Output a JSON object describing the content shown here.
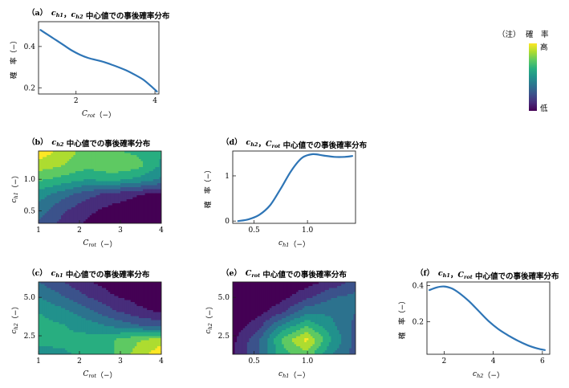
{
  "colorscale": [
    "#440154",
    "#472d7b",
    "#3b528b",
    "#2c728e",
    "#21918c",
    "#28ae80",
    "#5ec962",
    "#addc30",
    "#fde725"
  ],
  "line_color": "#2e75b6",
  "legend": {
    "note": "（注）",
    "prob_label": "確　率",
    "high": "高",
    "low": "低"
  },
  "chart_data": [
    {
      "id": "a",
      "type": "line",
      "title": "（a）　c_h1，c_h2 中心値での事後確率分布",
      "xlabel": "C_rot（−）",
      "ylabel": "確　率（−）",
      "xlim": [
        1.05,
        4.1
      ],
      "ylim": [
        0.17,
        0.52
      ],
      "xticks": [
        2,
        4
      ],
      "yticks": [
        0.2,
        0.4
      ],
      "x": [
        1.1,
        1.3,
        1.5,
        1.7,
        1.9,
        2.1,
        2.3,
        2.5,
        2.7,
        2.9,
        3.1,
        3.3,
        3.5,
        3.7,
        3.9,
        4.05
      ],
      "y": [
        0.48,
        0.455,
        0.43,
        0.405,
        0.38,
        0.36,
        0.345,
        0.335,
        0.325,
        0.312,
        0.298,
        0.282,
        0.262,
        0.24,
        0.208,
        0.182
      ]
    },
    {
      "id": "b",
      "type": "heatmap",
      "title": "（b）　c_h2 中心値での事後確率分布",
      "xlabel": "C_rot（−）",
      "ylabel": "c_h1（−）",
      "xlim": [
        1,
        4
      ],
      "ylim": [
        0.3,
        1.45
      ],
      "xticks": [
        1,
        2,
        3,
        4
      ],
      "yticks": [
        0.5,
        1.0
      ],
      "x": [
        1.0,
        1.6,
        2.2,
        2.8,
        3.4,
        4.0
      ],
      "y": [
        1.45,
        1.2,
        0.95,
        0.7,
        0.45,
        0.3
      ],
      "z": [
        [
          0.97,
          0.85,
          0.72,
          0.68,
          0.64,
          0.56
        ],
        [
          0.84,
          0.78,
          0.7,
          0.76,
          0.72,
          0.54
        ],
        [
          0.68,
          0.62,
          0.55,
          0.58,
          0.52,
          0.42
        ],
        [
          0.5,
          0.38,
          0.26,
          0.18,
          0.12,
          0.08
        ],
        [
          0.4,
          0.25,
          0.14,
          0.08,
          0.05,
          0.03
        ],
        [
          0.32,
          0.18,
          0.09,
          0.05,
          0.03,
          0.02
        ]
      ]
    },
    {
      "id": "c",
      "type": "heatmap",
      "title": "（c）　c_h1 中心値での事後確率分布",
      "xlabel": "C_rot（−）",
      "ylabel": "c_h2（−）",
      "xlim": [
        1,
        4
      ],
      "ylim": [
        1.3,
        6.0
      ],
      "xticks": [
        1,
        2,
        3,
        4
      ],
      "yticks": [
        2.5,
        5.0
      ],
      "x": [
        1.0,
        1.6,
        2.2,
        2.8,
        3.4,
        4.0
      ],
      "y": [
        6.0,
        5.0,
        4.0,
        3.0,
        2.0,
        1.3
      ],
      "z": [
        [
          0.34,
          0.22,
          0.12,
          0.06,
          0.04,
          0.03
        ],
        [
          0.44,
          0.34,
          0.22,
          0.12,
          0.07,
          0.05
        ],
        [
          0.55,
          0.47,
          0.36,
          0.24,
          0.14,
          0.09
        ],
        [
          0.6,
          0.56,
          0.5,
          0.42,
          0.34,
          0.28
        ],
        [
          0.58,
          0.58,
          0.6,
          0.66,
          0.76,
          0.84
        ],
        [
          0.52,
          0.54,
          0.58,
          0.66,
          0.82,
          0.97
        ]
      ]
    },
    {
      "id": "d",
      "type": "line",
      "title": "（d）　c_h2，C_rot 中心値での事後確率分布",
      "xlabel": "c_h1（−）",
      "ylabel": "確　率（−）",
      "xlim": [
        0.3,
        1.45
      ],
      "ylim": [
        -0.05,
        1.55
      ],
      "xticks": [
        0.5,
        1.0
      ],
      "yticks": [
        0,
        1
      ],
      "x": [
        0.35,
        0.45,
        0.55,
        0.65,
        0.75,
        0.85,
        0.95,
        1.05,
        1.15,
        1.25,
        1.35,
        1.42
      ],
      "y": [
        0.0,
        0.04,
        0.14,
        0.35,
        0.72,
        1.12,
        1.4,
        1.48,
        1.45,
        1.42,
        1.42,
        1.44
      ]
    },
    {
      "id": "e",
      "type": "heatmap",
      "title": "（e）　C_rot 中心値での事後確率分布",
      "xlabel": "c_h1（−）",
      "ylabel": "c_h2（−）",
      "xlim": [
        0.3,
        1.45
      ],
      "ylim": [
        1.3,
        6.0
      ],
      "xticks": [
        0.5,
        1.0
      ],
      "yticks": [
        2.5,
        5.0
      ],
      "x": [
        0.3,
        0.53,
        0.76,
        0.99,
        1.22,
        1.45
      ],
      "y": [
        6.0,
        5.0,
        4.0,
        3.0,
        2.0,
        1.3
      ],
      "z": [
        [
          0.02,
          0.02,
          0.03,
          0.06,
          0.14,
          0.26
        ],
        [
          0.02,
          0.03,
          0.07,
          0.18,
          0.32,
          0.36
        ],
        [
          0.03,
          0.06,
          0.18,
          0.4,
          0.42,
          0.34
        ],
        [
          0.05,
          0.16,
          0.46,
          0.64,
          0.48,
          0.3
        ],
        [
          0.08,
          0.3,
          0.68,
          0.92,
          0.56,
          0.3
        ],
        [
          0.1,
          0.32,
          0.62,
          0.74,
          0.46,
          0.28
        ]
      ]
    },
    {
      "id": "f",
      "type": "line",
      "title": "（f）　c_h1，C_rot 中心値での事後確率分布",
      "xlabel": "c_h2（−）",
      "ylabel": "確　率（−）",
      "xlim": [
        1.3,
        6.3
      ],
      "ylim": [
        0.02,
        0.42
      ],
      "xticks": [
        2,
        4,
        6
      ],
      "yticks": [
        0.2,
        0.4
      ],
      "x": [
        1.4,
        1.7,
        2.0,
        2.3,
        2.6,
        3.0,
        3.4,
        3.8,
        4.2,
        4.6,
        5.0,
        5.4,
        5.8,
        6.1
      ],
      "y": [
        0.375,
        0.39,
        0.395,
        0.385,
        0.36,
        0.315,
        0.26,
        0.205,
        0.16,
        0.125,
        0.095,
        0.07,
        0.052,
        0.043
      ]
    }
  ]
}
